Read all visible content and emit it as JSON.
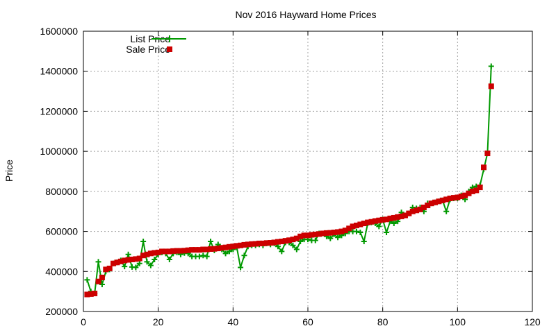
{
  "chart_data": {
    "type": "line",
    "title": "Nov 2016 Hayward Home Prices",
    "xlabel": "",
    "ylabel": "Price",
    "xlim": [
      0,
      120
    ],
    "ylim": [
      200000,
      1600000
    ],
    "x_ticks": [
      "0",
      "20",
      "40",
      "60",
      "80",
      "100",
      "120"
    ],
    "y_ticks": [
      "200000",
      "400000",
      "600000",
      "800000",
      "1000000",
      "1200000",
      "1400000",
      "1600000"
    ],
    "grid": true,
    "legend_position": "top-left",
    "series": [
      {
        "name": "List Price",
        "style": "line-points",
        "color": "#009900",
        "marker": "plus",
        "x": [
          1,
          2,
          3,
          4,
          5,
          6,
          7,
          8,
          9,
          10,
          11,
          12,
          13,
          14,
          15,
          16,
          17,
          18,
          19,
          20,
          21,
          22,
          23,
          24,
          25,
          26,
          27,
          28,
          29,
          30,
          31,
          32,
          33,
          34,
          35,
          36,
          37,
          38,
          39,
          40,
          41,
          42,
          43,
          44,
          45,
          46,
          47,
          48,
          49,
          50,
          51,
          52,
          53,
          54,
          55,
          56,
          57,
          58,
          59,
          60,
          61,
          62,
          63,
          64,
          65,
          66,
          67,
          68,
          69,
          70,
          71,
          72,
          73,
          74,
          75,
          76,
          77,
          78,
          79,
          80,
          81,
          82,
          83,
          84,
          85,
          86,
          87,
          88,
          89,
          90,
          91,
          92,
          93,
          94,
          95,
          96,
          97,
          98,
          99,
          100,
          101,
          102,
          103,
          104,
          105,
          106,
          107,
          108,
          109
        ],
        "values": [
          358000,
          300000,
          290000,
          448000,
          335000,
          400000,
          410000,
          440000,
          445000,
          455000,
          425000,
          485000,
          422000,
          420000,
          440000,
          550000,
          448000,
          430000,
          460000,
          485000,
          495000,
          490000,
          460000,
          490000,
          495000,
          485000,
          492000,
          490000,
          475000,
          475000,
          475000,
          480000,
          475000,
          550000,
          505000,
          535000,
          510000,
          490000,
          500000,
          510000,
          520000,
          420000,
          480000,
          525000,
          530000,
          530000,
          535000,
          530000,
          540000,
          535000,
          540000,
          525000,
          500000,
          545000,
          545000,
          530000,
          510000,
          550000,
          560000,
          560000,
          555000,
          555000,
          590000,
          590000,
          575000,
          565000,
          585000,
          570000,
          580000,
          590000,
          600000,
          600000,
          600000,
          595000,
          550000,
          640000,
          645000,
          640000,
          625000,
          660000,
          595000,
          650000,
          640000,
          650000,
          695000,
          680000,
          690000,
          720000,
          715000,
          720000,
          700000,
          740000,
          740000,
          745000,
          750000,
          755000,
          700000,
          760000,
          765000,
          765000,
          780000,
          760000,
          800000,
          820000,
          825000,
          830000,
          910000,
          990000,
          1425000
        ]
      },
      {
        "name": "Sale Price",
        "style": "points",
        "color": "#cc0000",
        "marker": "square",
        "x": [
          1,
          2,
          3,
          4,
          5,
          6,
          7,
          8,
          9,
          10,
          11,
          12,
          13,
          14,
          15,
          16,
          17,
          18,
          19,
          20,
          21,
          22,
          23,
          24,
          25,
          26,
          27,
          28,
          29,
          30,
          31,
          32,
          33,
          34,
          35,
          36,
          37,
          38,
          39,
          40,
          41,
          42,
          43,
          44,
          45,
          46,
          47,
          48,
          49,
          50,
          51,
          52,
          53,
          54,
          55,
          56,
          57,
          58,
          59,
          60,
          61,
          62,
          63,
          64,
          65,
          66,
          67,
          68,
          69,
          70,
          71,
          72,
          73,
          74,
          75,
          76,
          77,
          78,
          79,
          80,
          81,
          82,
          83,
          84,
          85,
          86,
          87,
          88,
          89,
          90,
          91,
          92,
          93,
          94,
          95,
          96,
          97,
          98,
          99,
          100,
          101,
          102,
          103,
          104,
          105,
          106,
          107,
          108,
          109
        ],
        "values": [
          285000,
          287000,
          290000,
          350000,
          370000,
          410000,
          415000,
          440000,
          445000,
          450000,
          455000,
          458000,
          460000,
          462000,
          465000,
          480000,
          485000,
          490000,
          493000,
          495000,
          500000,
          500000,
          500000,
          502000,
          503000,
          503000,
          504000,
          506000,
          508000,
          508000,
          508000,
          510000,
          510000,
          512000,
          513000,
          515000,
          518000,
          520000,
          523000,
          525000,
          528000,
          530000,
          533000,
          535000,
          537000,
          538000,
          540000,
          540000,
          542000,
          543000,
          545000,
          548000,
          550000,
          553000,
          556000,
          560000,
          565000,
          575000,
          580000,
          580000,
          583000,
          585000,
          587000,
          590000,
          592000,
          593000,
          595000,
          597000,
          600000,
          605000,
          615000,
          625000,
          630000,
          635000,
          640000,
          645000,
          648000,
          652000,
          655000,
          658000,
          660000,
          665000,
          668000,
          672000,
          675000,
          680000,
          690000,
          700000,
          705000,
          710000,
          720000,
          730000,
          740000,
          745000,
          750000,
          755000,
          760000,
          765000,
          768000,
          770000,
          775000,
          780000,
          790000,
          800000,
          805000,
          820000,
          920000,
          990000,
          1325000
        ]
      }
    ]
  }
}
